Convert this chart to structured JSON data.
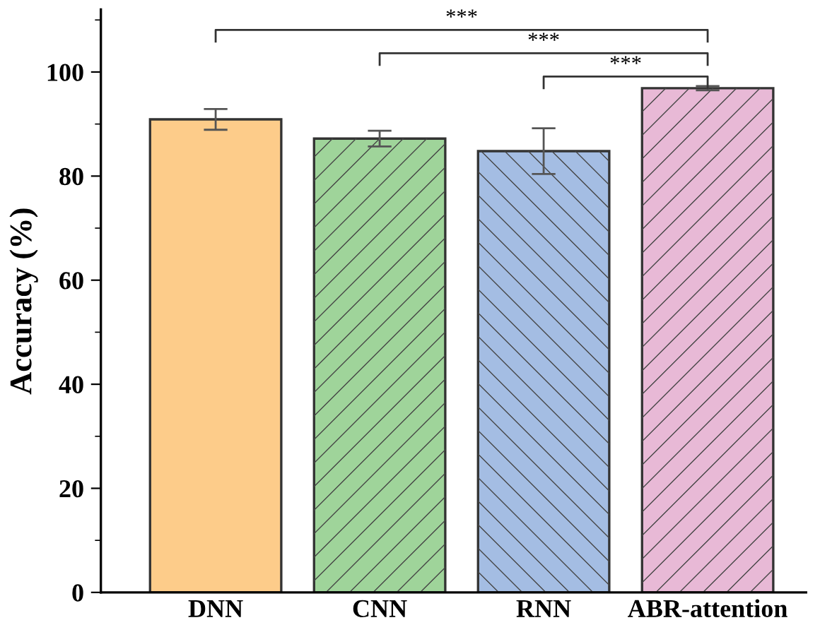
{
  "chart_data": {
    "type": "bar",
    "ylabel": "Accuracy (%)",
    "categories": [
      "DNN",
      "CNN",
      "RNN",
      "ABR-attention"
    ],
    "values": [
      90.9,
      87.2,
      84.8,
      96.9
    ],
    "errors": [
      2.0,
      1.5,
      4.4,
      0.4
    ],
    "colors": [
      "#fdcc8a",
      "#9fd49a",
      "#a4bde3",
      "#e8b9d6"
    ],
    "ylim": [
      0,
      112
    ],
    "yticks": [
      0,
      20,
      40,
      60,
      80,
      100
    ],
    "grid": false,
    "annotations": [
      "***",
      "***",
      "***"
    ]
  }
}
